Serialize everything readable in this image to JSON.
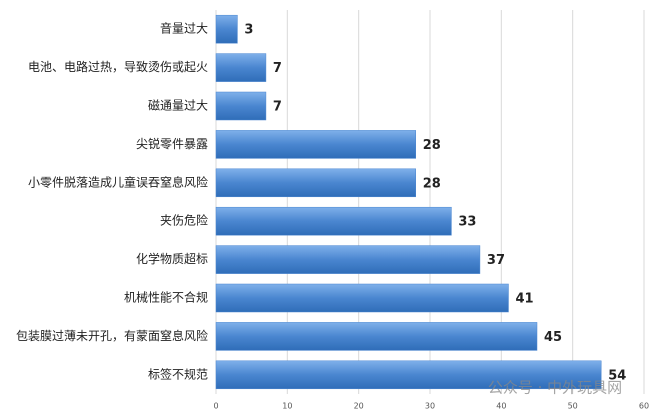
{
  "chart_data": {
    "type": "bar",
    "orientation": "horizontal",
    "categories": [
      "音量过大",
      "电池、电路过热，导致烫伤或起火",
      "磁通量过大",
      "尖锐零件暴露",
      "小零件脱落造成儿童误吞窒息风险",
      "夹伤危险",
      "化学物质超标",
      "机械性能不合规",
      "包装膜过薄未开孔，有蒙面窒息风险",
      "标签不规范"
    ],
    "values": [
      3,
      7,
      7,
      28,
      28,
      33,
      37,
      41,
      45,
      54
    ],
    "color": "#4a86d0",
    "xlim": [
      0,
      60
    ],
    "xticks": [
      0,
      10,
      20,
      30,
      40,
      50,
      60
    ],
    "grid": true,
    "watermark": "公众号 · 中外玩具网"
  }
}
